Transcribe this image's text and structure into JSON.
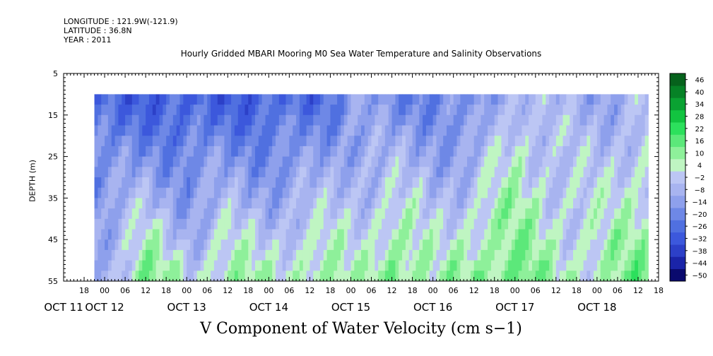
{
  "header": {
    "longitude": "LONGITUDE : 121.9W(-121.9)",
    "latitude": "LATITUDE : 36.8N",
    "year": "YEAR : 2011"
  },
  "chart_data": {
    "type": "heatmap",
    "title": "Hourly Gridded MBARI Mooring M0 Sea Water Temperature and Salinity Observations",
    "xlabel": "V Component of Water Velocity (cm s-1)",
    "xlabel_display": "V Component of Water Velocity (cm s−1)",
    "ylabel": "DEPTH (m)",
    "ylim": [
      55,
      5
    ],
    "y_inverted": true,
    "y_ticks": [
      5,
      15,
      25,
      35,
      45,
      55
    ],
    "data_depth_range": [
      10,
      55
    ],
    "x_range_hours": [
      "2011-10-11 12:00",
      "2011-10-18 18:00"
    ],
    "data_start": "2011-10-11 21:00",
    "data_end": "2011-10-18 15:00",
    "x_hour_ticks": [
      "18",
      "00",
      "06",
      "12",
      "18",
      "00",
      "06",
      "12",
      "18",
      "00",
      "06",
      "12",
      "18",
      "00",
      "06",
      "12",
      "18",
      "00",
      "06",
      "12",
      "18",
      "00",
      "06",
      "12",
      "18",
      "00",
      "06",
      "12",
      "18",
      "00",
      "06",
      "12"
    ],
    "x_day_labels": [
      "OCT 11",
      "OCT 12",
      "OCT 13",
      "OCT 14",
      "OCT 15",
      "OCT 16",
      "OCT 17",
      "OCT 18"
    ],
    "colorbar": {
      "levels": [
        -50,
        -44,
        -38,
        -32,
        -26,
        -20,
        -14,
        -8,
        -2,
        4,
        10,
        16,
        22,
        28,
        34,
        40,
        46
      ],
      "labels": [
        "46",
        "40",
        "34",
        "28",
        "22",
        "16",
        "10",
        "4",
        "−2",
        "−8",
        "−14",
        "−20",
        "−26",
        "−32",
        "−38",
        "−44",
        "−50"
      ],
      "colors": [
        "#0a0a6e",
        "#1a24a8",
        "#2c40c8",
        "#3c58dc",
        "#5070e0",
        "#6e88e6",
        "#8ea0ec",
        "#a8b4f0",
        "#bcc6f4",
        "#bff5c2",
        "#8ef09a",
        "#5ce87a",
        "#2ce05c",
        "#12c440",
        "#0aa232",
        "#068226",
        "#06621c"
      ]
    },
    "depth_profile_v": [
      {
        "time": "2011-10-12 00:00",
        "surface": -25,
        "bottom": 0
      },
      {
        "time": "2011-10-12 12:00",
        "surface": -25,
        "bottom": 15
      },
      {
        "time": "2011-10-13 00:00",
        "surface": -28,
        "bottom": 5
      },
      {
        "time": "2011-10-13 12:00",
        "surface": -25,
        "bottom": 12
      },
      {
        "time": "2011-10-14 00:00",
        "surface": -25,
        "bottom": 8
      },
      {
        "time": "2011-10-14 12:00",
        "surface": -25,
        "bottom": 14
      },
      {
        "time": "2011-10-15 00:00",
        "surface": -10,
        "bottom": 6
      },
      {
        "time": "2011-10-15 12:00",
        "surface": -18,
        "bottom": 20
      },
      {
        "time": "2011-10-16 00:00",
        "surface": -14,
        "bottom": 6
      },
      {
        "time": "2011-10-16 12:00",
        "surface": -18,
        "bottom": 18
      },
      {
        "time": "2011-10-17 00:00",
        "surface": 2,
        "bottom": 15
      },
      {
        "time": "2011-10-17 12:00",
        "surface": -6,
        "bottom": 10
      },
      {
        "time": "2011-10-18 00:00",
        "surface": -8,
        "bottom": 8
      },
      {
        "time": "2011-10-18 12:00",
        "surface": -2,
        "bottom": 16
      }
    ]
  }
}
